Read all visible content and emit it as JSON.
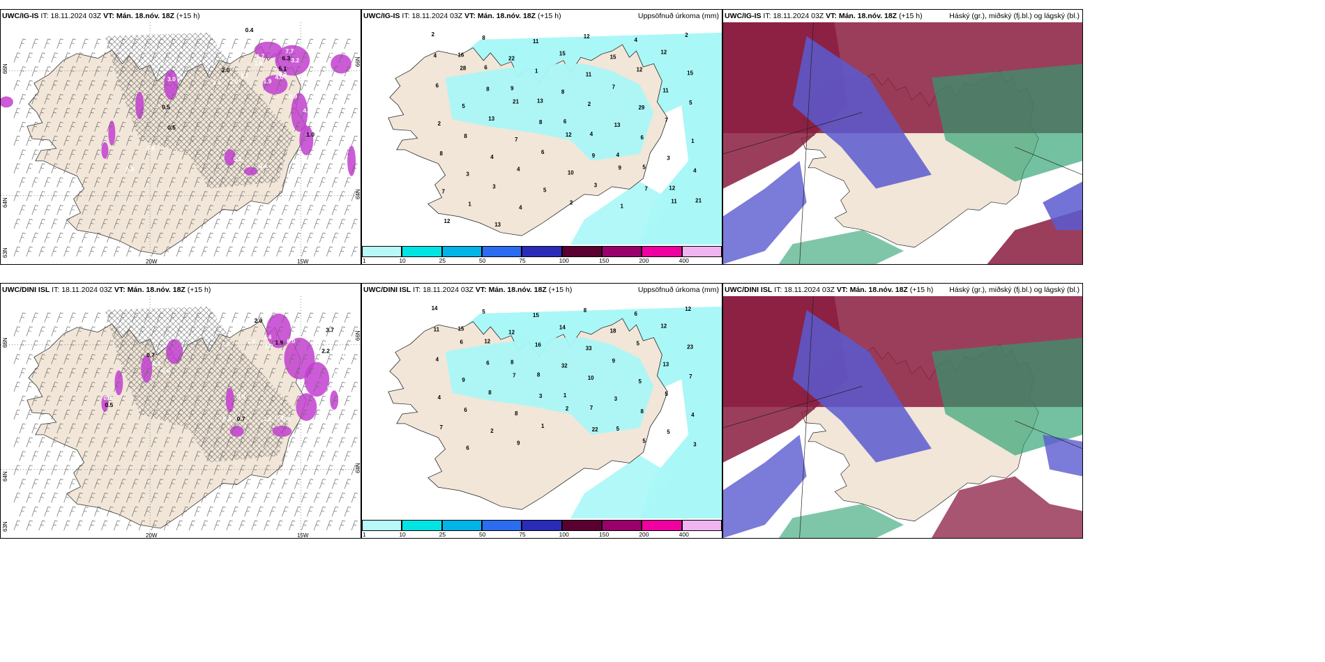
{
  "rows": [
    {
      "wind_panel": {
        "model": "UWC/IG-IS",
        "it_label": "IT:",
        "it_value": "18.11.2024 03Z",
        "vt_label": "VT:",
        "vt_value": "Mán. 18.nóv. 18Z",
        "lead": "(+15 h)",
        "lat_labels": [
          "66N",
          "64N",
          "63N"
        ],
        "lon_labels": [
          "20W",
          "15W"
        ],
        "right_labels": [
          "66N",
          "64N"
        ],
        "values": [
          "0.4",
          "6.0",
          "1.7",
          "1.6",
          "2.0",
          "2.7",
          "1.9",
          "4.0",
          "6.3",
          "3.2",
          "2.3",
          "7.7",
          "5.1",
          "4.3",
          "0.9",
          "5.6",
          "0.5",
          "3.0",
          "2.0",
          "0.8",
          "0.5",
          "0.9",
          "0.3",
          "0.4",
          "1.0",
          "2.0",
          "1.0"
        ]
      },
      "precip_panel": {
        "model": "UWC/IG-IS",
        "it_label": "IT:",
        "it_value": "18.11.2024 03Z",
        "vt_label": "VT:",
        "vt_value": "Mán. 18.nóv. 18Z",
        "lead": "(+15 h)",
        "title_right": "Uppsöfnuð úrkoma (mm)",
        "numbers": [
          "2",
          "8",
          "11",
          "12",
          "4",
          "2",
          "16",
          "22",
          "15",
          "15",
          "12",
          "4",
          "6",
          "1",
          "11",
          "12",
          "15",
          "28",
          "9",
          "8",
          "7",
          "11",
          "6",
          "8",
          "13",
          "2",
          "29",
          "5",
          "5",
          "21",
          "6",
          "13",
          "7",
          "2",
          "13",
          "8",
          "4",
          "6",
          "1",
          "8",
          "7",
          "12",
          "4",
          "3",
          "8",
          "4",
          "6",
          "9",
          "5",
          "4",
          "3",
          "4",
          "10",
          "9",
          "12",
          "7",
          "3",
          "5",
          "3",
          "7",
          "21",
          "1",
          "4",
          "2",
          "1",
          "11",
          "12",
          "13"
        ]
      },
      "cloud_panel": {
        "model": "UWC/IG-IS",
        "it_label": "IT:",
        "it_value": "18.11.2024 03Z",
        "vt_label": "VT:",
        "vt_value": "Mán. 18.nóv. 18Z",
        "lead": "(+15 h)",
        "title_right": "Háský (gr.), miðský (fj.bl.) og lágský (bl.)"
      }
    },
    {
      "wind_panel": {
        "model": "UWC/DINI ISL",
        "it_label": "IT:",
        "it_value": "18.11.2024 03Z",
        "vt_label": "VT:",
        "vt_value": "Mán. 18.nóv. 18Z",
        "lead": "(+15 h)",
        "lat_labels": [
          "66N",
          "64N",
          "63N"
        ],
        "lon_labels": [
          "20W",
          "15W"
        ],
        "right_labels": [
          "66N",
          "64N"
        ],
        "values": [
          "2.0",
          "0.6",
          "1.0",
          "1.4",
          "1.9",
          "6.0",
          "2.0",
          "2.6",
          "3.7",
          "2.4",
          "2.5",
          "3.4",
          "2.2",
          "2.2",
          "1.2",
          "0.5",
          "0.7",
          "0.3",
          "0.5",
          "0.4",
          "0.7",
          "1.0",
          "0.6",
          "0.3",
          "0.5",
          "0.4",
          "0.3"
        ]
      },
      "precip_panel": {
        "model": "UWC/DINI ISL",
        "it_label": "IT:",
        "it_value": "18.11.2024 03Z",
        "vt_label": "VT:",
        "vt_value": "Mán. 18.nóv. 18Z",
        "lead": "(+15 h)",
        "title_right": "Uppsöfnuð úrkoma (mm)",
        "numbers": [
          "14",
          "5",
          "15",
          "8",
          "6",
          "12",
          "15",
          "12",
          "14",
          "18",
          "12",
          "11",
          "12",
          "16",
          "33",
          "5",
          "23",
          "6",
          "8",
          "32",
          "9",
          "13",
          "4",
          "6",
          "8",
          "10",
          "5",
          "7",
          "9",
          "7",
          "1",
          "3",
          "5",
          "4",
          "8",
          "3",
          "7",
          "8",
          "4",
          "6",
          "8",
          "2",
          "5",
          "5",
          "7",
          "2",
          "1",
          "22",
          "5",
          "3",
          "6",
          "9"
        ]
      },
      "cloud_panel": {
        "model": "UWC/DINI ISL",
        "it_label": "IT:",
        "it_value": "18.11.2024 03Z",
        "vt_label": "VT:",
        "vt_value": "Mán. 18.nóv. 18Z",
        "lead": "(+15 h)",
        "title_right": "Háský (gr.), miðský (fj.bl.) og lágský (bl.)"
      }
    }
  ],
  "colorbar": {
    "labels": [
      "1",
      "10",
      "25",
      "50",
      "75",
      "100",
      "150",
      "200",
      "400"
    ],
    "colors": [
      "#b8f8f8",
      "#00e4e4",
      "#00b4e8",
      "#2c6cf0",
      "#2a2cb8",
      "#5a0030",
      "#9a006c",
      "#f000a0",
      "#f0b4f0"
    ]
  },
  "colors": {
    "land": "#f1e6d8",
    "precip_light": "#aaf7f7",
    "wind_precip": "#c33ed0",
    "cloud_high": "#8a1c40",
    "cloud_mid": "#5a5ad0",
    "cloud_low": "#2aa070"
  }
}
